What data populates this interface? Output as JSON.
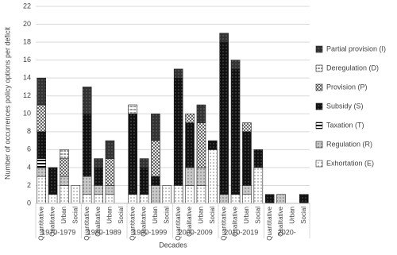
{
  "chart_data": {
    "type": "stacked_bar",
    "y_label": "Number of occurrences policy options per deficit",
    "x_label": "Decades",
    "groups": [
      "1970-1979",
      "1980-1989",
      "1990-1999",
      "2000-2009",
      "2010-2019",
      "2020-"
    ],
    "categories": [
      "Quantitative",
      "Qualitative",
      "Urban",
      "Social",
      "Quantitative",
      "Qualitative",
      "Urban",
      "Social",
      "Quantitative",
      "Qualitative",
      "Urban",
      "Social",
      "Quantitative",
      "Qualitative",
      "Urban",
      "Social",
      "Quantitative",
      "Qualitative",
      "Urban",
      "Social",
      "Quantitative",
      "Qualitative",
      "Urban",
      "Social"
    ],
    "series": [
      {
        "name": "Exhortation (E)",
        "color": "#ffffff",
        "pattern": "dots",
        "values": [
          3,
          1,
          2,
          2,
          1,
          1,
          1,
          0,
          1,
          1,
          0,
          2,
          2,
          2,
          2,
          6,
          0,
          1,
          1,
          4,
          0,
          0,
          0,
          0
        ]
      },
      {
        "name": "Regulation (R)",
        "color": "#c8c8c8",
        "pattern": "dots",
        "values": [
          1,
          0,
          1,
          0,
          2,
          1,
          1,
          0,
          0,
          0,
          2,
          0,
          0,
          2,
          2,
          0,
          1,
          0,
          1,
          0,
          0,
          1,
          0,
          0
        ]
      },
      {
        "name": "Taxation (T)",
        "color": "#ffffff",
        "pattern": "stripe",
        "values": [
          1,
          0,
          0,
          0,
          0,
          0,
          0,
          0,
          0,
          0,
          0,
          0,
          0,
          0,
          0,
          0,
          0,
          0,
          0,
          0,
          0,
          0,
          0,
          0
        ]
      },
      {
        "name": "Subsidy (S)",
        "color": "#111111",
        "pattern": "dots",
        "values": [
          3,
          3,
          0,
          0,
          7,
          2,
          0,
          0,
          9,
          3,
          1,
          0,
          12,
          5,
          0,
          1,
          17,
          14,
          6,
          2,
          1,
          0,
          0,
          1
        ]
      },
      {
        "name": "Provision (P)",
        "color": "#ffffff",
        "pattern": "cross",
        "values": [
          3,
          0,
          2,
          0,
          0,
          0,
          3,
          0,
          0,
          0,
          4,
          0,
          0,
          1,
          5,
          0,
          0,
          0,
          1,
          0,
          0,
          0,
          0,
          0
        ]
      },
      {
        "name": "Deregulation (D)",
        "color": "#ffffff",
        "pattern": "dash",
        "values": [
          0,
          0,
          1,
          0,
          0,
          0,
          0,
          0,
          1,
          0,
          0,
          0,
          0,
          0,
          0,
          0,
          0,
          0,
          0,
          0,
          0,
          0,
          0,
          0
        ]
      },
      {
        "name": "Partial provision (I)",
        "color": "#333333",
        "pattern": "dots",
        "values": [
          3,
          0,
          0,
          0,
          3,
          1,
          2,
          0,
          0,
          1,
          3,
          0,
          1,
          0,
          2,
          0,
          1,
          1,
          0,
          0,
          0,
          0,
          0,
          0
        ]
      }
    ],
    "ylim": [
      0,
      22
    ],
    "yticks": [
      0,
      2,
      4,
      6,
      8,
      10,
      12,
      14,
      16,
      18,
      20,
      22
    ],
    "grid": true,
    "legend": "right"
  }
}
